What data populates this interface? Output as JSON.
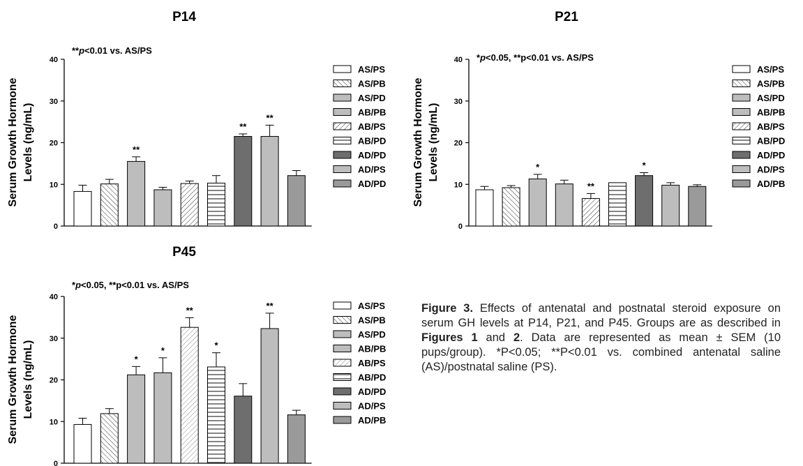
{
  "patterns": {
    "white": {
      "fill": "#ffffff"
    },
    "diag": {
      "fill": "url(#pat-diag)"
    },
    "gray": {
      "fill": "#bdbdbd"
    },
    "back": {
      "fill": "url(#pat-back)"
    },
    "hlines": {
      "fill": "url(#pat-hlines)"
    },
    "dark": {
      "fill": "#6e6e6e"
    },
    "mid": {
      "fill": "#9a9a9a"
    },
    "hatch_light": {
      "fill": "url(#pat-hatchlight)"
    }
  },
  "chart_data": [
    {
      "id": "p14",
      "type": "bar",
      "title": "P14",
      "ylabel": "Serum Growth Hormone Levels (ng/mL)",
      "ylabel_lines": [
        "Serum Growth Hormone",
        "Levels (ng/mL)"
      ],
      "annotation": "**p<0.01 vs. AS/PS",
      "annotation_parts": {
        "pre": "**",
        "p": "p",
        "post": "<0.01 vs. AS/PS"
      },
      "ylim": [
        0,
        40
      ],
      "yticks": [
        "0",
        "10",
        "20",
        "30",
        "40"
      ],
      "categories": [
        "AS/PS",
        "AS/PB",
        "AS/PD",
        "AB/PB",
        "AB/PS",
        "AB/PD",
        "AD/PD",
        "AD/PS",
        "AD/PD"
      ],
      "values": [
        8.3,
        10.1,
        15.5,
        8.7,
        10.2,
        10.3,
        21.5,
        21.5,
        12.1
      ],
      "errors": [
        1.5,
        1.1,
        1.1,
        0.6,
        0.6,
        1.8,
        0.6,
        2.7,
        1.2
      ],
      "significance": [
        "",
        "",
        "**",
        "",
        "",
        "",
        "**",
        "**",
        ""
      ],
      "fills": [
        "white",
        "diag",
        "gray",
        "gray",
        "back",
        "hlines",
        "dark",
        "gray",
        "mid"
      ],
      "legend": [
        "AS/PS",
        "AS/PB",
        "AS/PD",
        "AB/PB",
        "AB/PS",
        "AB/PD",
        "AD/PD",
        "AD/PS",
        "AD/PD"
      ]
    },
    {
      "id": "p21",
      "type": "bar",
      "title": "P21",
      "ylabel": "Serum Growth Hormone Levels (ng/mL)",
      "ylabel_lines": [
        "Serum Growth Hormone",
        "Levels (ng/mL)"
      ],
      "annotation": "*p<0.05, **p<0.01 vs. AS/PS",
      "annotation_parts": {
        "pre": "*",
        "p": "p",
        "post": "<0.05, **p<0.01 vs. AS/PS"
      },
      "ylim": [
        0,
        40
      ],
      "yticks": [
        "0",
        "10",
        "20",
        "30",
        "40"
      ],
      "categories": [
        "AS/PS",
        "AS/PB",
        "AS/PD",
        "AB/PB",
        "AB/PS",
        "AB/PD",
        "AD/PD",
        "AD/PS",
        "AD/PB"
      ],
      "values": [
        8.7,
        9.2,
        11.3,
        10.1,
        6.6,
        10.4,
        12.1,
        9.8,
        9.5
      ],
      "errors": [
        0.8,
        0.5,
        1.1,
        0.9,
        1.2,
        0.0,
        0.7,
        0.6,
        0.4
      ],
      "significance": [
        "",
        "",
        "*",
        "",
        "**",
        "",
        "*",
        "",
        ""
      ],
      "fills": [
        "white",
        "diag",
        "gray",
        "gray",
        "back",
        "hlines",
        "dark",
        "gray",
        "mid"
      ],
      "legend": [
        "AS/PS",
        "AS/PB",
        "AS/PD",
        "AB/PB",
        "AB/PS",
        "AB/PD",
        "AD/PD",
        "AD/PS",
        "AD/PB"
      ]
    },
    {
      "id": "p45",
      "type": "bar",
      "title": "P45",
      "ylabel": "Serum Growth Hormone Levels (ng/mL)",
      "ylabel_lines": [
        "Serum Growth Hormone",
        "Levels (ng/mL)"
      ],
      "annotation": "*p<0.05, **p<0.01 vs. AS/PS",
      "annotation_parts": {
        "pre": "*",
        "p": "p",
        "post": "<0.05, **p<0.01 vs. AS/PS"
      },
      "ylim": [
        0,
        40
      ],
      "yticks": [
        "0",
        "10",
        "20",
        "30",
        "40"
      ],
      "categories": [
        "AS/PS",
        "AS/PB",
        "AS/PD",
        "AB/PB",
        "AB/PS",
        "AB/PD",
        "AD/PD",
        "AD/PS",
        "AD/PB"
      ],
      "values": [
        9.3,
        11.9,
        21.2,
        21.7,
        32.6,
        23.1,
        16.1,
        32.3,
        11.6
      ],
      "errors": [
        1.5,
        1.2,
        2.0,
        3.6,
        2.3,
        3.4,
        3.0,
        3.7,
        1.1
      ],
      "significance": [
        "",
        "",
        "*",
        "*",
        "**",
        "*",
        "",
        "**",
        ""
      ],
      "fills": [
        "white",
        "diag",
        "gray",
        "gray",
        "hatch_light",
        "hlines",
        "dark",
        "gray",
        "mid"
      ],
      "legend": [
        "AS/PS",
        "AS/PB",
        "AS/PD",
        "AB/PB",
        "AB/PS",
        "AB/PD",
        "AD/PD",
        "AD/PS",
        "AD/PB"
      ]
    }
  ],
  "caption": {
    "label": "Figure 3.",
    "text1": " Effects of antenatal and postnatal steroid exposure on serum GH levels at P14, P21, and P45. Groups are as described in ",
    "ref1": "Figures 1",
    "text2": " and ",
    "ref2": "2",
    "text3": ". Data are represented as mean ± SEM (10 pups/group). *P<0.05; **P<0.01 vs. combined antenatal saline (AS)/postnatal saline (PS)."
  }
}
